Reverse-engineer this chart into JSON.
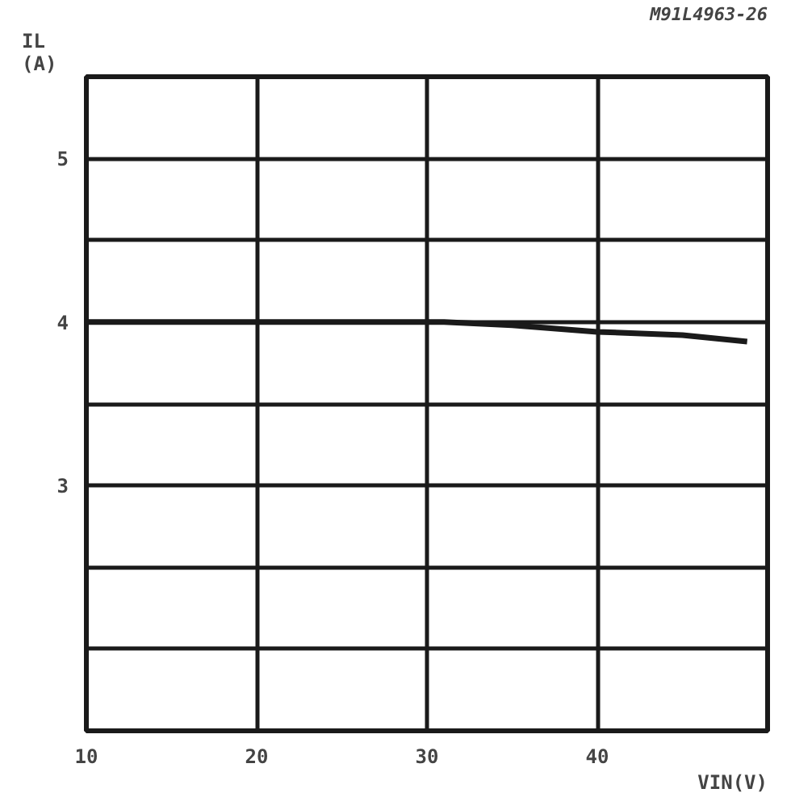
{
  "chart_data": {
    "type": "line",
    "xlabel": "VIN(V)",
    "ylabel": "IL\n(A)",
    "annotations": [
      "M91L4963-26"
    ],
    "x": [
      10,
      31,
      35,
      40,
      45,
      48.8
    ],
    "series": [
      {
        "color": "#1a1a1a",
        "values": [
          4.0,
          4.0,
          3.98,
          3.94,
          3.92,
          3.88
        ]
      }
    ],
    "xlim": [
      10,
      50
    ],
    "xticks": [
      10,
      20,
      30,
      40,
      {
        "value": 50,
        "label": null
      }
    ],
    "ylim": [
      1.5,
      5.5
    ],
    "yticks": [
      {
        "value": 1.5,
        "label": null
      },
      {
        "value": 2,
        "label": null
      },
      {
        "value": 2.5,
        "label": null
      },
      3,
      {
        "value": 3.5,
        "label": null
      },
      4,
      {
        "value": 4.5,
        "label": null
      },
      5,
      {
        "value": 5.5,
        "label": null
      }
    ],
    "grid": true,
    "line_style": "solid",
    "marker": "none"
  }
}
